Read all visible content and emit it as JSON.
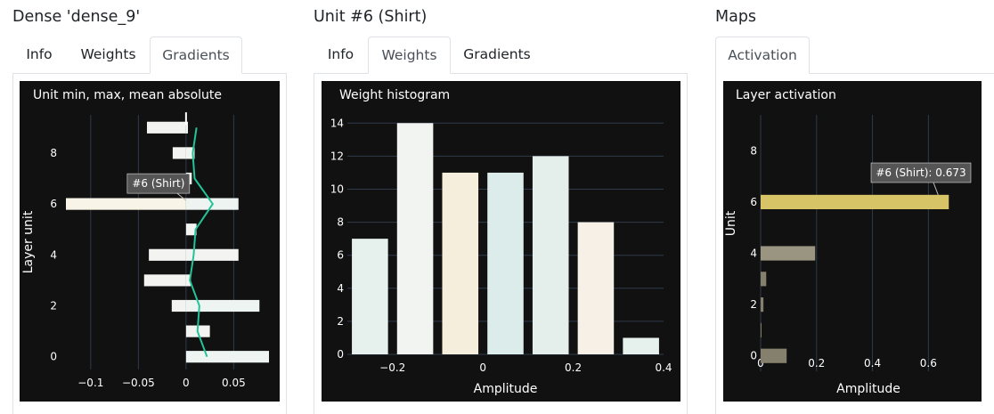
{
  "panels": [
    {
      "title": "Dense 'dense_9'",
      "tabs": [
        {
          "label": "Info",
          "active": false
        },
        {
          "label": "Weights",
          "active": false
        },
        {
          "label": "Gradients",
          "active": true
        }
      ]
    },
    {
      "title": "Unit #6 (Shirt)",
      "tabs": [
        {
          "label": "Info",
          "active": false
        },
        {
          "label": "Weights",
          "active": true
        },
        {
          "label": "Gradients",
          "active": false
        }
      ]
    },
    {
      "title": "Maps",
      "tabs": [
        {
          "label": "Activation",
          "active": true
        }
      ]
    }
  ],
  "chart_data": [
    {
      "type": "bar",
      "orientation": "horizontal",
      "title": "Unit min, max, mean absolute",
      "xlabel": "",
      "ylabel": "Layer unit",
      "xlim": [
        -0.126,
        0.087
      ],
      "ylim": [
        -0.5,
        9.5
      ],
      "xticks": [
        -0.1,
        -0.05,
        0,
        0.05
      ],
      "xtick_labels": [
        "−0.1",
        "−0.05",
        "0",
        "0.05"
      ],
      "yticks": [
        0,
        2,
        4,
        6,
        8
      ],
      "grid": true,
      "units": [
        0,
        1,
        2,
        3,
        4,
        5,
        6,
        7,
        8,
        9
      ],
      "series": [
        {
          "values": [
            0.087,
            0.025,
            0.077,
            0.005,
            0.055,
            0.011,
            0.055,
            0.006,
            0.009,
            0.002
          ],
          "colors": [
            "#eef4f2",
            "#f3f4f1",
            "#eef4f2",
            "#f3f4f1",
            "#f3f4f1",
            "#f3f4f1",
            "#eef4f2",
            "#f3f4f1",
            "#f3f4f1",
            "#f3f4f1"
          ]
        },
        {
          "values": [
            0.0,
            0.0,
            -0.015,
            -0.044,
            -0.039,
            -0.0,
            -0.126,
            0.0,
            -0.014,
            -0.041
          ],
          "colors": [
            "#f3f4f1",
            "#f3f4f1",
            "#f3f4f1",
            "#f3f4f1",
            "#f3f4f1",
            "#f3f4f1",
            "#f8f4e8",
            "#f3f4f1",
            "#f3f4f1",
            "#f3f4f1"
          ]
        },
        {
          "values": [
            0.022,
            0.012,
            0.014,
            0.004,
            0.008,
            0.01,
            0.028,
            0.009,
            0.007,
            0.011
          ],
          "color": "#22c497"
        }
      ],
      "hover": {
        "unit": 6,
        "text": "#6 (Shirt)"
      },
      "highlight_line": {
        "value": 0.0,
        "from": 9.6,
        "to": 9.1
      }
    },
    {
      "type": "bar",
      "title": "Weight histogram",
      "xlabel": "Amplitude",
      "ylabel": "",
      "xlim": [
        -0.3,
        0.4
      ],
      "ylim": [
        0,
        14.5
      ],
      "xticks": [
        -0.2,
        0,
        0.2,
        0.4
      ],
      "xtick_labels": [
        "−0.2",
        "0",
        "0.2",
        "0.4"
      ],
      "yticks": [
        0,
        2,
        4,
        6,
        8,
        10,
        12,
        14
      ],
      "grid": true,
      "bin_width": 0.1,
      "bin_centers": [
        -0.25,
        -0.15,
        -0.05,
        0.05,
        0.15,
        0.25,
        0.35
      ],
      "values": [
        7,
        14,
        11,
        11,
        12,
        8,
        1
      ],
      "colors": [
        "#e6f0ec",
        "#f2f4f2",
        "#f6eedc",
        "#dcecea",
        "#e4efeb",
        "#f6f0e6",
        "#e6f0ec"
      ]
    },
    {
      "type": "bar",
      "orientation": "horizontal",
      "title": "Layer activation",
      "xlabel": "Amplitude",
      "ylabel": "Unit",
      "xlim": [
        0,
        0.79
      ],
      "ylim": [
        -0.6,
        9.4
      ],
      "xticks": [
        0,
        0.2,
        0.4,
        0.6
      ],
      "xtick_labels": [
        "0",
        "0.2",
        "0.4",
        "0.6"
      ],
      "yticks": [
        0,
        2,
        4,
        6,
        8
      ],
      "grid": true,
      "units": [
        0,
        1,
        2,
        3,
        4,
        5,
        6,
        7,
        8,
        9
      ],
      "values": [
        0.093,
        0.003,
        0.01,
        0.02,
        0.195,
        0.0,
        0.673,
        0.0,
        0.0,
        0.0
      ],
      "colors": [
        "#85806d",
        "#85806d",
        "#85806d",
        "#85806d",
        "#9a9580",
        "#85806d",
        "#d7c466",
        "#85806d",
        "#85806d",
        "#85806d"
      ],
      "hover": {
        "unit": 6,
        "text": "#6 (Shirt): 0.673"
      }
    }
  ]
}
